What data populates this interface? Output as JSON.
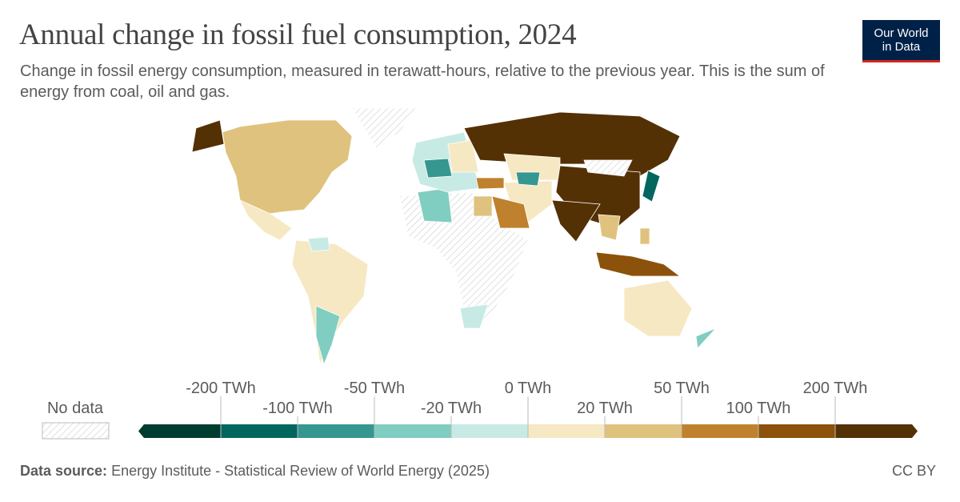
{
  "header": {
    "title": "Annual change in fossil fuel consumption, 2024",
    "subtitle": "Change in fossil energy consumption, measured in terawatt-hours, relative to the previous year. This is the sum of energy from coal, oil and gas."
  },
  "logo": {
    "line1": "Our World",
    "line2": "in Data"
  },
  "legend": {
    "no_data": "No data",
    "labels": [
      "-200 TWh",
      "-100 TWh",
      "-50 TWh",
      "-20 TWh",
      "0 TWh",
      "20 TWh",
      "50 TWh",
      "100 TWh",
      "200 TWh"
    ],
    "colors": [
      "#003c30",
      "#01665e",
      "#35978f",
      "#80cdc1",
      "#c7eae5",
      "#f6e8c3",
      "#dfc27d",
      "#bf812d",
      "#8c510a",
      "#543005"
    ]
  },
  "footer": {
    "source_label": "Data source:",
    "source": "Energy Institute - Statistical Review of World Energy (2025)",
    "license": "CC BY"
  }
}
